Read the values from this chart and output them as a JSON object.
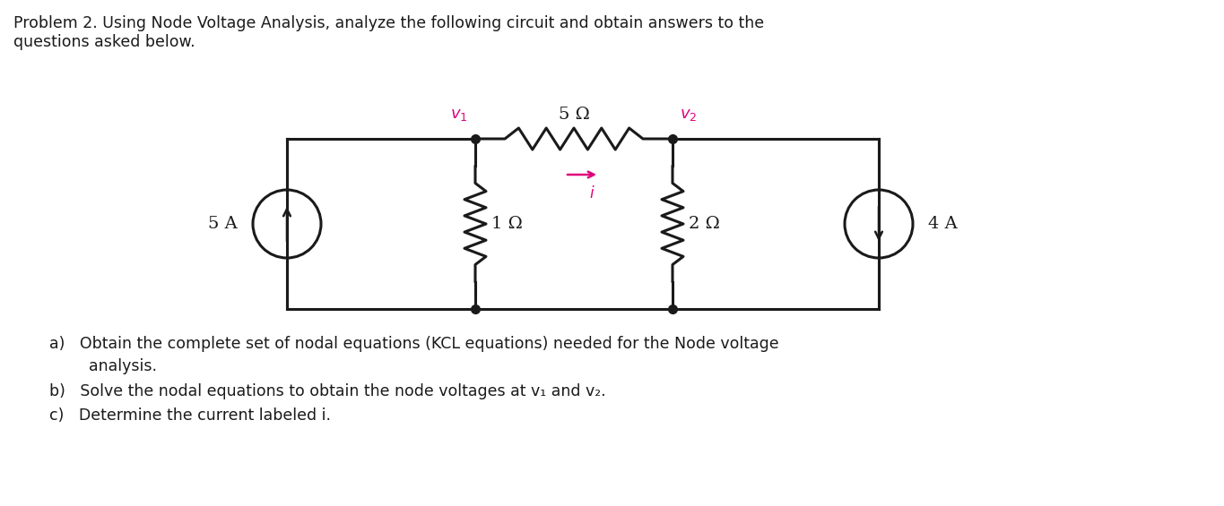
{
  "title_line1": "Problem 2. Using Node Voltage Analysis, analyze the following circuit and obtain answers to the",
  "title_line2": "questions asked below.",
  "question_a": "a)   Obtain the complete set of nodal equations (KCL equations) needed for the Node voltage",
  "question_a2": "        analysis.",
  "question_b": "b)   Solve the nodal equations to obtain the node voltages at v₁ and v₂.",
  "question_c": "c)   Determine the current labeled i.",
  "bg_color": "#ffffff",
  "text_color": "#1a1a1a",
  "circuit_color": "#1a1a1a",
  "node_label_color": "#e0007a",
  "current_arrow_color": "#e0007a"
}
